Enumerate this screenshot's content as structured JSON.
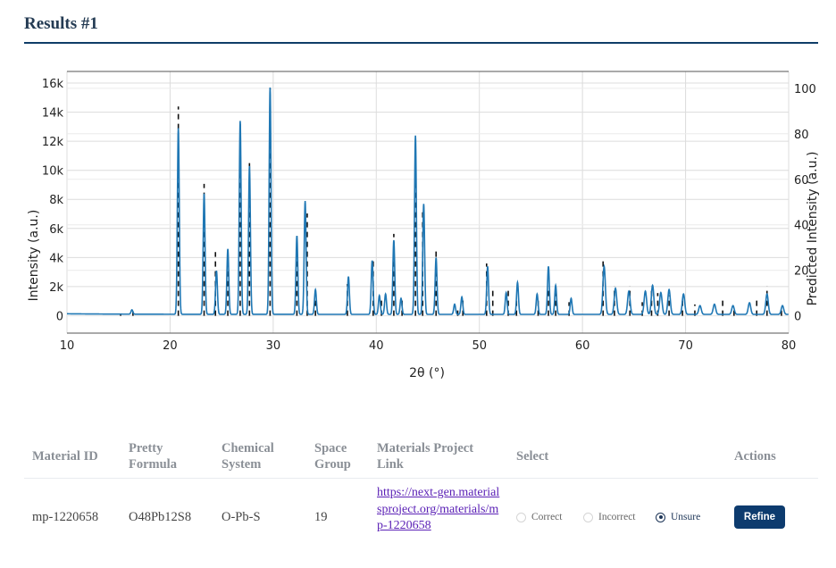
{
  "page": {
    "title": "Results #1"
  },
  "table": {
    "headers": [
      "Material ID",
      "Pretty\nFormula",
      "Chemical\nSystem",
      "Space\nGroup",
      "Materials Project\nLink",
      "Select",
      "Actions"
    ],
    "rows": [
      {
        "material_id": "mp-1220658",
        "pretty_formula": "O48Pb12S8",
        "chemical_system": "O-Pb-S",
        "space_group": "19",
        "link": "https://next-gen.materialsproject.org/materials/mp-1220658",
        "select_options": [
          "Correct",
          "Incorrect",
          "Unsure"
        ],
        "selected": "Unsure",
        "action_label": "Refine"
      }
    ]
  },
  "chart_data": {
    "type": "line",
    "xlabel": "2θ (°)",
    "ylabel": "Intensity (a.u.)",
    "y2label": "Predicted Intensity (a.u.)",
    "xlim": [
      10,
      80
    ],
    "ylim": [
      -1200,
      16800
    ],
    "y2lim": [
      -7.6,
      107.4
    ],
    "x_ticks": [
      "10",
      "20",
      "30",
      "40",
      "50",
      "60",
      "70",
      "80"
    ],
    "y_ticks": [
      "0",
      "2k",
      "4k",
      "6k",
      "8k",
      "10k",
      "12k",
      "14k",
      "16k"
    ],
    "y2_ticks": [
      "0",
      "20",
      "40",
      "60",
      "80",
      "100"
    ],
    "grid": true,
    "colors": {
      "measured": "#1f77b4",
      "predicted": "#111111"
    },
    "series": [
      {
        "kind": "measured",
        "peaks": [
          [
            16.3,
            300
          ],
          [
            20.8,
            12800
          ],
          [
            23.3,
            8300
          ],
          [
            24.5,
            3000
          ],
          [
            25.6,
            4500
          ],
          [
            26.8,
            13300
          ],
          [
            27.7,
            10200
          ],
          [
            29.7,
            15600
          ],
          [
            32.3,
            5400
          ],
          [
            33.1,
            7800
          ],
          [
            34.1,
            1700
          ],
          [
            37.3,
            2600
          ],
          [
            39.6,
            3700
          ],
          [
            40.3,
            1300
          ],
          [
            40.9,
            1400
          ],
          [
            41.7,
            5100
          ],
          [
            42.4,
            1100
          ],
          [
            43.8,
            12300
          ],
          [
            44.6,
            7600
          ],
          [
            45.8,
            3900
          ],
          [
            47.6,
            700
          ],
          [
            48.3,
            1200
          ],
          [
            50.8,
            3300
          ],
          [
            52.6,
            1500
          ],
          [
            53.7,
            2200
          ],
          [
            55.6,
            1400
          ],
          [
            56.7,
            3300
          ],
          [
            57.4,
            2000
          ],
          [
            58.9,
            1100
          ],
          [
            62.1,
            3300
          ],
          [
            63.2,
            1800
          ],
          [
            64.5,
            1600
          ],
          [
            66.1,
            1600
          ],
          [
            66.8,
            2000
          ],
          [
            67.6,
            1500
          ],
          [
            68.4,
            1700
          ],
          [
            69.8,
            1400
          ],
          [
            71.4,
            600
          ],
          [
            72.8,
            700
          ],
          [
            74.6,
            600
          ],
          [
            76.2,
            800
          ],
          [
            77.9,
            1400
          ],
          [
            79.4,
            600
          ]
        ]
      },
      {
        "kind": "predicted",
        "sticks": [
          [
            15.2,
            1
          ],
          [
            16.4,
            2
          ],
          [
            20.8,
            92
          ],
          [
            23.3,
            58
          ],
          [
            24.4,
            28
          ],
          [
            25.6,
            28
          ],
          [
            26.8,
            85
          ],
          [
            27.7,
            69
          ],
          [
            29.7,
            100
          ],
          [
            32.3,
            35
          ],
          [
            33.3,
            45
          ],
          [
            34.1,
            8
          ],
          [
            37.2,
            14
          ],
          [
            39.7,
            24
          ],
          [
            40.5,
            8
          ],
          [
            41.7,
            36
          ],
          [
            42.5,
            7
          ],
          [
            43.8,
            67
          ],
          [
            44.5,
            47
          ],
          [
            45.8,
            30
          ],
          [
            47.9,
            4
          ],
          [
            48.4,
            8
          ],
          [
            50.7,
            23
          ],
          [
            51.3,
            12
          ],
          [
            52.8,
            11
          ],
          [
            53.6,
            8
          ],
          [
            55.7,
            7
          ],
          [
            56.7,
            13
          ],
          [
            57.4,
            12
          ],
          [
            58.7,
            6
          ],
          [
            62.0,
            25
          ],
          [
            63.1,
            13
          ],
          [
            64.6,
            13
          ],
          [
            65.8,
            6
          ],
          [
            66.7,
            13
          ],
          [
            67.3,
            10
          ],
          [
            68.4,
            9
          ],
          [
            69.7,
            8
          ],
          [
            70.9,
            5
          ],
          [
            73.6,
            7
          ],
          [
            74.7,
            4
          ],
          [
            76.9,
            8
          ],
          [
            77.9,
            13
          ],
          [
            79.3,
            4
          ]
        ]
      }
    ]
  }
}
